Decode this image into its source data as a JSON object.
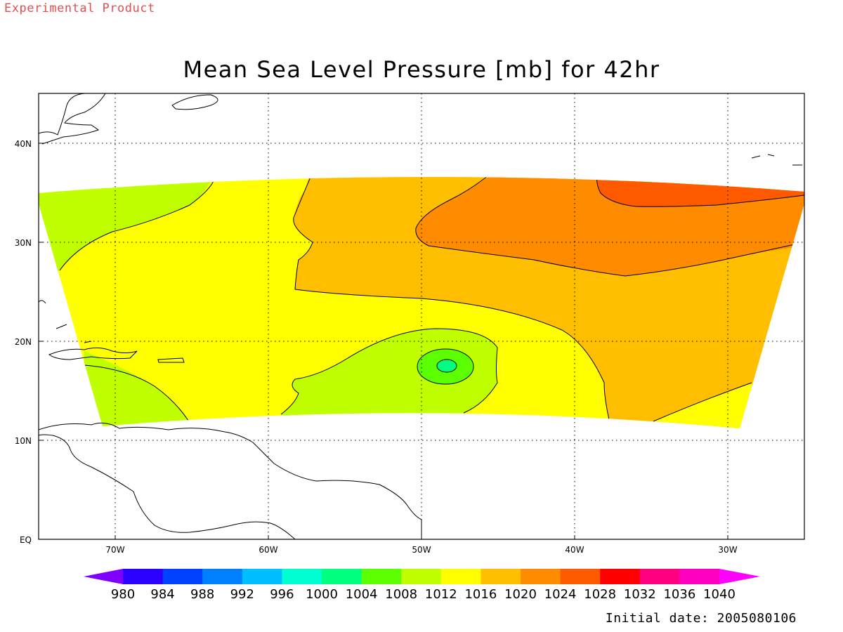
{
  "header": {
    "product_label": "Experimental Product",
    "title": "Mean Sea Level Pressure [mb] for 42hr"
  },
  "footer": {
    "initial_date": "Initial date: 2005080106"
  },
  "axes": {
    "lon_ticks": [
      "70W",
      "60W",
      "50W",
      "40W",
      "30W"
    ],
    "lat_ticks": [
      "EQ",
      "10N",
      "20N",
      "30N",
      "40N"
    ],
    "lon_range": [
      -75,
      -25
    ],
    "lat_range": [
      0,
      45
    ],
    "grid": "dotted"
  },
  "colorbar": {
    "ticks": [
      "980",
      "984",
      "988",
      "992",
      "996",
      "1000",
      "1004",
      "1008",
      "1012",
      "1016",
      "1020",
      "1024",
      "1028",
      "1032",
      "1036",
      "1040"
    ],
    "colors": [
      "#7f00ff",
      "#2c00ff",
      "#0040ff",
      "#0080ff",
      "#00bfff",
      "#00ffd0",
      "#00ff80",
      "#5cff00",
      "#bfff00",
      "#ffff00",
      "#ffbf00",
      "#ff8c00",
      "#ff5a00",
      "#ff0000",
      "#ff0080",
      "#ff00c0",
      "#ff00ff"
    ]
  },
  "fields": {
    "region_colors": {
      "p1008": "#bfff00",
      "p1012": "#ffff00",
      "p1016": "#ffbf00",
      "p1020": "#ff8c00",
      "p1024": "#ff5a00",
      "p1004": "#5cff00",
      "p1000": "#00ff80"
    },
    "low_center": {
      "lon": -48.5,
      "lat": 17.5
    }
  }
}
